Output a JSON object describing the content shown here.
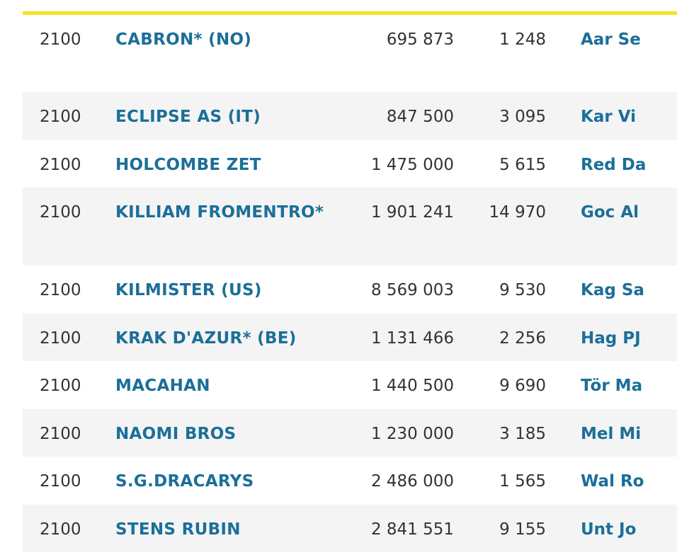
{
  "table": {
    "rows": [
      [
        "2100",
        "CABRON* (NO)",
        "695 873",
        "1 248",
        "Aar Se"
      ],
      [
        "2100",
        "ECLIPSE AS (IT)",
        "847 500",
        "3 095",
        "Kar Vi"
      ],
      [
        "2100",
        "HOLCOMBE ZET",
        "1 475 000",
        "5 615",
        "Red Da"
      ],
      [
        "2100",
        "KILLIAM FROMENTRO*",
        "1 901 241",
        "14 970",
        "Goc Al"
      ],
      [
        "2100",
        "KILMISTER (US)",
        "8 569 003",
        "9 530",
        "Kag Sa"
      ],
      [
        "2100",
        "KRAK D'AZUR* (BE)",
        "1 131 466",
        "2 256",
        "Hag PJ"
      ],
      [
        "2100",
        "MACAHAN",
        "1 440 500",
        "9 690",
        "Tör Ma"
      ],
      [
        "2100",
        "NAOMI BROS",
        "1 230 000",
        "3 185",
        "Mel Mi"
      ],
      [
        "2100",
        "S.G.DRACARYS",
        "2 486 000",
        "1 565",
        "Wal Ro"
      ],
      [
        "2100",
        "STENS RUBIN",
        "2 841 551",
        "9 155",
        "Unt Jo"
      ]
    ]
  }
}
